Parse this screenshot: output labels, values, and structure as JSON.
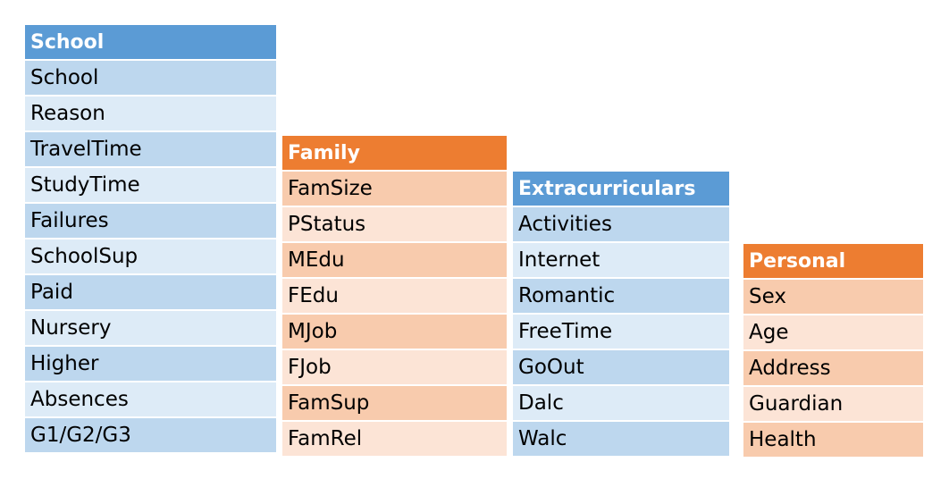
{
  "colors": {
    "school_header": "#5B9BD5",
    "school_row_dark": "#BDD7EE",
    "school_row_light": "#DDEBF7",
    "family_header": "#ED7D31",
    "family_row_dark": "#F8CBAD",
    "family_row_light": "#FCE4D6"
  },
  "tables": [
    {
      "id": "school",
      "header": "School",
      "theme": "blue",
      "rows": [
        "School",
        "Reason",
        "TravelTime",
        "StudyTime",
        "Failures",
        "SchoolSup",
        "Paid",
        "Nursery",
        "Higher",
        "Absences",
        "G1/G2/G3"
      ]
    },
    {
      "id": "family",
      "header": "Family",
      "theme": "orange",
      "rows": [
        "FamSize",
        "PStatus",
        "MEdu",
        "FEdu",
        "MJob",
        "FJob",
        "FamSup",
        "FamRel"
      ]
    },
    {
      "id": "extracurriculars",
      "header": "Extracurriculars",
      "theme": "blue",
      "rows": [
        "Activities",
        "Internet",
        "Romantic",
        "FreeTime",
        "GoOut",
        "Dalc",
        "Walc"
      ]
    },
    {
      "id": "personal",
      "header": "Personal",
      "theme": "orange",
      "rows": [
        "Sex",
        "Age",
        "Address",
        "Guardian",
        "Health"
      ]
    }
  ]
}
